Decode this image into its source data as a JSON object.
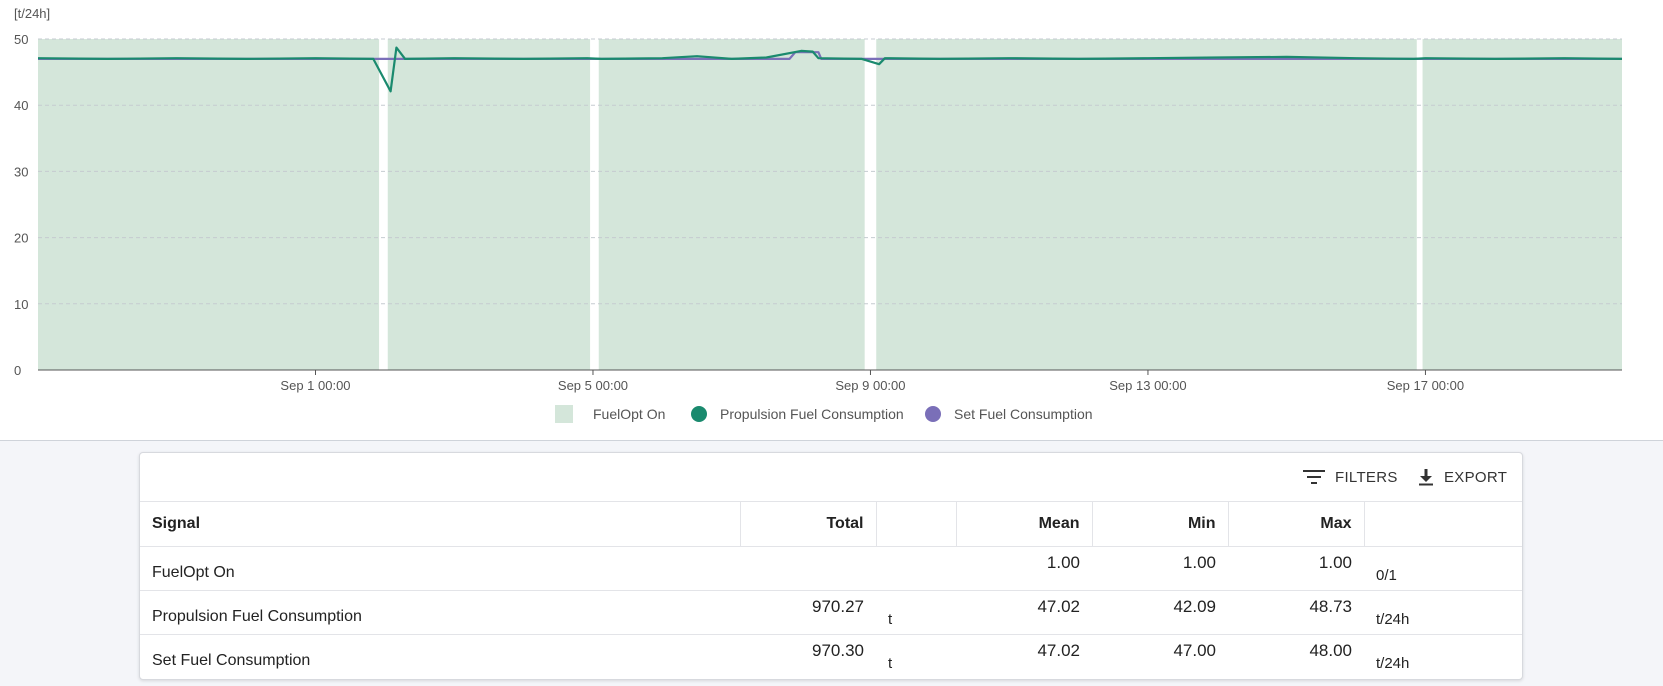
{
  "chart_data": {
    "type": "line",
    "unit_label": "[t/24h]",
    "ylim": [
      0,
      50
    ],
    "yticks": [
      0,
      10,
      20,
      30,
      40,
      50
    ],
    "xlim": [
      "2023-08-28T00:00",
      "2023-09-19T20:00"
    ],
    "xticks": [
      {
        "x": "2023-09-01T00:00",
        "label": "Sep 1 00:00"
      },
      {
        "x": "2023-09-05T00:00",
        "label": "Sep 5 00:00"
      },
      {
        "x": "2023-09-09T00:00",
        "label": "Sep 9 00:00"
      },
      {
        "x": "2023-09-13T00:00",
        "label": "Sep 13 00:00"
      },
      {
        "x": "2023-09-17T00:00",
        "label": "Sep 17 00:00"
      }
    ],
    "grid": "horizontal dashed",
    "legend_position": "bottom-center",
    "bands": {
      "name": "FuelOpt On",
      "color": "#d4e6da",
      "on_ranges": [
        [
          "2023-08-28T00:00",
          "2023-09-01T22:00"
        ],
        [
          "2023-09-02T01:00",
          "2023-09-04T23:00"
        ],
        [
          "2023-09-05T02:00",
          "2023-09-08T22:00"
        ],
        [
          "2023-09-09T02:00",
          "2023-09-16T21:00"
        ],
        [
          "2023-09-16T23:00",
          "2023-09-19T20:00"
        ]
      ]
    },
    "series": [
      {
        "name": "Propulsion Fuel Consumption",
        "color": "#1a8a6e",
        "points": [
          [
            "2023-08-28T00:00",
            47.1
          ],
          [
            "2023-08-29T00:00",
            47.0
          ],
          [
            "2023-08-30T00:00",
            47.1
          ],
          [
            "2023-08-31T00:00",
            47.0
          ],
          [
            "2023-09-01T00:00",
            47.1
          ],
          [
            "2023-09-01T20:00",
            47.0
          ],
          [
            "2023-09-02T02:00",
            42.1
          ],
          [
            "2023-09-02T04:00",
            48.7
          ],
          [
            "2023-09-02T07:00",
            47.0
          ],
          [
            "2023-09-03T00:00",
            47.1
          ],
          [
            "2023-09-04T00:00",
            47.0
          ],
          [
            "2023-09-04T22:00",
            47.1
          ],
          [
            "2023-09-05T03:00",
            47.0
          ],
          [
            "2023-09-06T00:00",
            47.1
          ],
          [
            "2023-09-06T12:00",
            47.4
          ],
          [
            "2023-09-07T00:00",
            47.0
          ],
          [
            "2023-09-07T12:00",
            47.2
          ],
          [
            "2023-09-08T00:00",
            48.2
          ],
          [
            "2023-09-08T04:00",
            48.1
          ],
          [
            "2023-09-08T06:00",
            47.1
          ],
          [
            "2023-09-08T21:00",
            47.0
          ],
          [
            "2023-09-09T03:00",
            46.2
          ],
          [
            "2023-09-09T05:00",
            47.1
          ],
          [
            "2023-09-10T00:00",
            47.0
          ],
          [
            "2023-09-11T00:00",
            47.1
          ],
          [
            "2023-09-12T00:00",
            47.0
          ],
          [
            "2023-09-13T00:00",
            47.1
          ],
          [
            "2023-09-14T00:00",
            47.2
          ],
          [
            "2023-09-15T00:00",
            47.3
          ],
          [
            "2023-09-16T00:00",
            47.1
          ],
          [
            "2023-09-16T20:00",
            47.0
          ],
          [
            "2023-09-17T00:00",
            47.1
          ],
          [
            "2023-09-18T00:00",
            47.0
          ],
          [
            "2023-09-19T00:00",
            47.1
          ],
          [
            "2023-09-19T20:00",
            47.0
          ]
        ]
      },
      {
        "name": "Set Fuel Consumption",
        "color": "#7a6fb8",
        "points": [
          [
            "2023-08-28T00:00",
            47.0
          ],
          [
            "2023-09-01T22:00",
            47.0
          ],
          [
            "2023-09-02T01:00",
            47.0
          ],
          [
            "2023-09-04T23:00",
            47.0
          ],
          [
            "2023-09-05T02:00",
            47.0
          ],
          [
            "2023-09-07T20:00",
            47.0
          ],
          [
            "2023-09-07T22:00",
            48.0
          ],
          [
            "2023-09-08T06:00",
            48.0
          ],
          [
            "2023-09-08T07:00",
            47.0
          ],
          [
            "2023-09-08T22:00",
            47.0
          ],
          [
            "2023-09-09T02:00",
            47.0
          ],
          [
            "2023-09-16T21:00",
            47.0
          ],
          [
            "2023-09-16T23:00",
            47.0
          ],
          [
            "2023-09-19T20:00",
            47.0
          ]
        ]
      }
    ],
    "legend": [
      {
        "label": "FuelOpt On",
        "swatch": "square",
        "color": "#d4e6da"
      },
      {
        "label": "Propulsion Fuel Consumption",
        "swatch": "circle",
        "color": "#1a8a6e"
      },
      {
        "label": "Set Fuel Consumption",
        "swatch": "circle",
        "color": "#7a6fb8"
      }
    ]
  },
  "toolbar": {
    "filters_label": "FILTERS",
    "export_label": "EXPORT"
  },
  "table": {
    "headers": {
      "signal": "Signal",
      "total": "Total",
      "total_unit": "",
      "mean": "Mean",
      "min": "Min",
      "max": "Max",
      "unit": ""
    },
    "rows": [
      {
        "signal": "FuelOpt On",
        "total": "",
        "total_unit": "",
        "mean": "1.00",
        "min": "1.00",
        "max": "1.00",
        "unit": "0/1"
      },
      {
        "signal": "Propulsion Fuel Consumption",
        "total": "970.27",
        "total_unit": "t",
        "mean": "47.02",
        "min": "42.09",
        "max": "48.73",
        "unit": "t/24h"
      },
      {
        "signal": "Set Fuel Consumption",
        "total": "970.30",
        "total_unit": "t",
        "mean": "47.02",
        "min": "47.00",
        "max": "48.00",
        "unit": "t/24h"
      }
    ]
  }
}
